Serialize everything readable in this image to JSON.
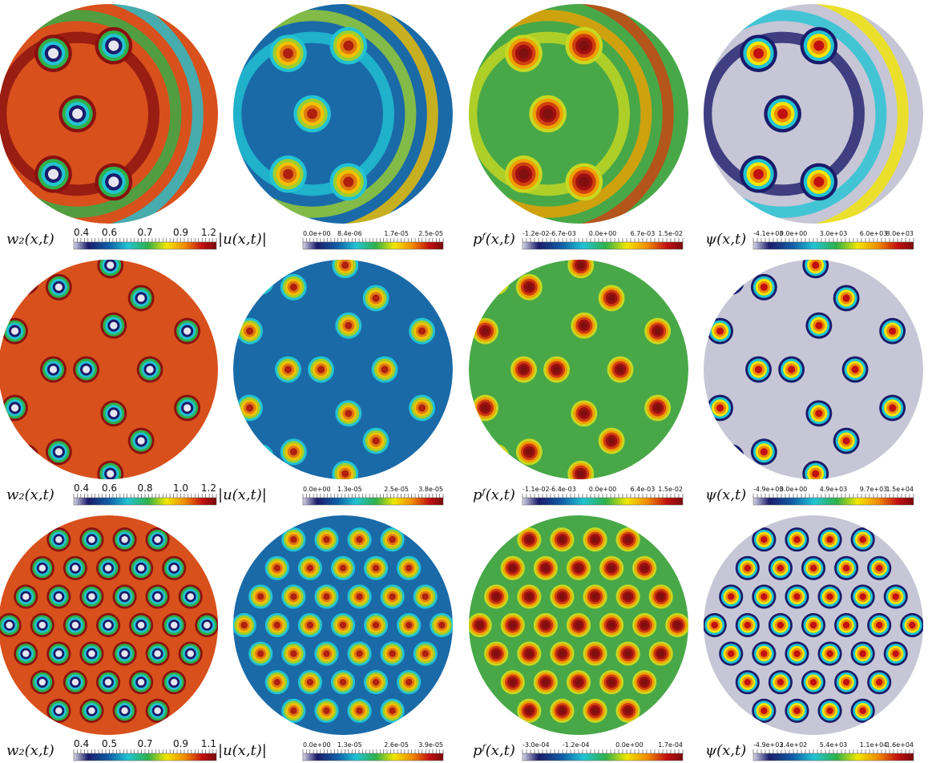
{
  "rows": [
    {
      "panels": [
        {
          "label": "w₂(x,t)",
          "ticks": [
            "0.4",
            "0.6",
            "0.7",
            "0.9",
            "1.2"
          ]
        },
        {
          "label": "|u(x,t)|",
          "ticks": [
            "0.0e+00",
            "8.4e-06",
            "1.7e-05",
            "2.5e-05"
          ]
        },
        {
          "label": "pᶠ(x,t)",
          "ticks": [
            "-1.2e-02",
            "-6.7e-03",
            "0.0e+00",
            "6.7e-03",
            "1.5e-02"
          ]
        },
        {
          "label": "ψ(x,t)",
          "ticks": [
            "-4.1e+03",
            "0.0e+00",
            "3.0e+03",
            "6.0e+03",
            "8.0e+03"
          ]
        }
      ]
    },
    {
      "panels": [
        {
          "label": "w₂(x,t)",
          "ticks": [
            "0.4",
            "0.6",
            "0.8",
            "1.0",
            "1.2"
          ]
        },
        {
          "label": "|u(x,t)|",
          "ticks": [
            "0.0e+00",
            "1.3e-05",
            "2.5e-05",
            "3.8e-05"
          ]
        },
        {
          "label": "pᶠ(x,t)",
          "ticks": [
            "-1.1e-02",
            "-6.4e-03",
            "0.0e+00",
            "6.4e-03",
            "1.5e-02"
          ]
        },
        {
          "label": "ψ(x,t)",
          "ticks": [
            "-4.9e+03",
            "0.0e+00",
            "4.9e+03",
            "9.7e+03",
            "1.5e+04"
          ]
        }
      ]
    },
    {
      "panels": [
        {
          "label": "w₂(x,t)",
          "ticks": [
            "0.4",
            "0.5",
            "0.7",
            "0.9",
            "1.1"
          ]
        },
        {
          "label": "|u(x,t)|",
          "ticks": [
            "0.0e+00",
            "1.3e-05",
            "2.6e-05",
            "3.9e-05"
          ]
        },
        {
          "label": "pᶠ(x,t)",
          "ticks": [
            "-3.0e-04",
            "-1.2e-04",
            "0.0e+00",
            "1.7e-04"
          ]
        },
        {
          "label": "ψ(x,t)",
          "ticks": [
            "-4.9e+03",
            "2.4e+02",
            "5.4e+03",
            "1.1e+04",
            "1.6e+04"
          ]
        }
      ]
    }
  ]
}
